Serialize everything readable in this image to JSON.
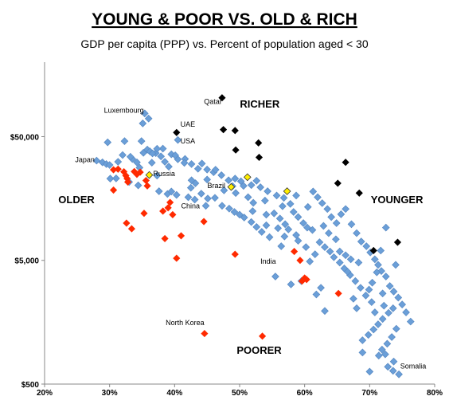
{
  "chart_data": {
    "type": "scatter",
    "title": "YOUNG & POOR VS. OLD & RICH",
    "subtitle": "GDP per capita (PPP) vs. Percent of population aged < 30",
    "xlabel": "",
    "ylabel": "",
    "x_scale": "linear",
    "y_scale": "log",
    "xlim": [
      20,
      80
    ],
    "ylim": [
      500,
      200000
    ],
    "x_ticks": [
      "20%",
      "30%",
      "40%",
      "50%",
      "60%",
      "70%",
      "80%"
    ],
    "x_tick_values": [
      20,
      30,
      40,
      50,
      60,
      70,
      80
    ],
    "y_ticks": [
      "$500",
      "$5,000",
      "$50,000"
    ],
    "y_tick_values": [
      500,
      5000,
      50000
    ],
    "grid": false,
    "legend": "none",
    "colors": {
      "other": "#6b9fd8",
      "other_stroke": "#5b8cc5",
      "richer": "#000000",
      "older_poorer": "#ff2a00",
      "highlight": "#ffee00",
      "highlight_stroke": "#333333"
    },
    "region_labels": [
      {
        "text": "RICHER",
        "x": 53.1,
        "y": 86000
      },
      {
        "text": "OLDER",
        "x": 24.9,
        "y": 14500
      },
      {
        "text": "YOUNGER",
        "x": 74.2,
        "y": 14500
      },
      {
        "text": "POORER",
        "x": 53.0,
        "y": 880
      }
    ],
    "country_labels": [
      {
        "text": "Luxembourg",
        "x": 32.2,
        "y": 78000,
        "anchor": "middle"
      },
      {
        "text": "Qatar",
        "x": 45.9,
        "y": 92000,
        "anchor": "middle"
      },
      {
        "text": "UAE",
        "x": 40.9,
        "y": 60000,
        "anchor": "start"
      },
      {
        "text": "USA",
        "x": 40.9,
        "y": 44000,
        "anchor": "start"
      },
      {
        "text": "Japan",
        "x": 27.7,
        "y": 31000,
        "anchor": "end"
      },
      {
        "text": "Russia",
        "x": 36.7,
        "y": 24000,
        "anchor": "start"
      },
      {
        "text": "Brazil",
        "x": 47.8,
        "y": 19200,
        "anchor": "end"
      },
      {
        "text": "China",
        "x": 41.0,
        "y": 13200,
        "anchor": "start"
      },
      {
        "text": "India",
        "x": 54.4,
        "y": 4700,
        "anchor": "middle"
      },
      {
        "text": "North Korea",
        "x": 41.6,
        "y": 1500,
        "anchor": "middle"
      },
      {
        "text": "Somalia",
        "x": 74.7,
        "y": 670,
        "anchor": "start"
      }
    ],
    "series": [
      {
        "group": "richer",
        "points": [
          [
            47.3,
            103000
          ],
          [
            47.5,
            57000
          ],
          [
            49.3,
            56000
          ],
          [
            40.3,
            54000
          ],
          [
            52.9,
            44500
          ],
          [
            49.4,
            39000
          ],
          [
            53.0,
            34000
          ],
          [
            66.3,
            31000
          ],
          [
            65.1,
            21000
          ],
          [
            68.4,
            17500
          ],
          [
            70.6,
            6000
          ],
          [
            74.3,
            7000
          ]
        ]
      },
      {
        "group": "highlight",
        "points": [
          [
            36.1,
            24500
          ],
          [
            51.2,
            23500
          ],
          [
            48.7,
            19600
          ],
          [
            57.3,
            18100
          ]
        ]
      },
      {
        "group": "older_poorer",
        "points": [
          [
            30.6,
            27000
          ],
          [
            31.3,
            27300
          ],
          [
            32.2,
            26000
          ],
          [
            32.5,
            24200
          ],
          [
            32.7,
            22900
          ],
          [
            32.8,
            21500
          ],
          [
            33.8,
            26100
          ],
          [
            34.2,
            24800
          ],
          [
            34.7,
            25800
          ],
          [
            35.6,
            22100
          ],
          [
            35.8,
            20000
          ],
          [
            30.6,
            18500
          ],
          [
            35.3,
            12000
          ],
          [
            38.2,
            12500
          ],
          [
            39.0,
            13300
          ],
          [
            39.3,
            14700
          ],
          [
            39.7,
            11700
          ],
          [
            32.6,
            10000
          ],
          [
            33.4,
            9000
          ],
          [
            38.5,
            7500
          ],
          [
            41.0,
            7900
          ],
          [
            40.3,
            5200
          ],
          [
            44.5,
            10300
          ],
          [
            49.3,
            5600
          ],
          [
            58.4,
            5900
          ],
          [
            59.3,
            5000
          ],
          [
            60.0,
            3600
          ],
          [
            59.6,
            3400
          ],
          [
            60.3,
            3500
          ],
          [
            65.2,
            2700
          ],
          [
            44.6,
            1280
          ],
          [
            53.5,
            1220
          ]
        ]
      },
      {
        "group": "other",
        "points": [
          [
            35.4,
            77000
          ],
          [
            36.0,
            70000
          ],
          [
            35.1,
            64000
          ],
          [
            29.7,
            45000
          ],
          [
            32.3,
            46000
          ],
          [
            34.9,
            46000
          ],
          [
            40.5,
            47000
          ],
          [
            28.0,
            32000
          ],
          [
            28.9,
            31000
          ],
          [
            29.5,
            30000
          ],
          [
            30.0,
            29500
          ],
          [
            31.3,
            31300
          ],
          [
            32.0,
            35500
          ],
          [
            33.5,
            33000
          ],
          [
            34.2,
            31000
          ],
          [
            35.2,
            37000
          ],
          [
            35.8,
            39300
          ],
          [
            36.2,
            38000
          ],
          [
            37.1,
            36800
          ],
          [
            37.9,
            34600
          ],
          [
            38.5,
            31300
          ],
          [
            39.5,
            36000
          ],
          [
            40.5,
            32800
          ],
          [
            41.6,
            33000
          ],
          [
            42.6,
            30000
          ],
          [
            43.6,
            27500
          ],
          [
            44.2,
            30300
          ],
          [
            45.0,
            27100
          ],
          [
            46.0,
            25800
          ],
          [
            47.2,
            24400
          ],
          [
            48.3,
            22200
          ],
          [
            49.3,
            22900
          ],
          [
            50.2,
            21800
          ],
          [
            50.6,
            20000
          ],
          [
            51.8,
            20300
          ],
          [
            52.6,
            22000
          ],
          [
            53.2,
            19500
          ],
          [
            54.3,
            18100
          ],
          [
            55.7,
            16700
          ],
          [
            56.8,
            16000
          ],
          [
            30.1,
            22900
          ],
          [
            31.0,
            23000
          ],
          [
            33.0,
            21500
          ],
          [
            34.4,
            20200
          ],
          [
            37.6,
            18100
          ],
          [
            38.9,
            17200
          ],
          [
            42.5,
            19300
          ],
          [
            43.2,
            21000
          ],
          [
            44.1,
            17300
          ],
          [
            45.1,
            15800
          ],
          [
            46.2,
            16000
          ],
          [
            47.3,
            13800
          ],
          [
            48.4,
            13100
          ],
          [
            49.2,
            12300
          ],
          [
            50.0,
            11700
          ],
          [
            50.7,
            11100
          ],
          [
            51.8,
            10200
          ],
          [
            52.6,
            9300
          ],
          [
            53.4,
            8500
          ],
          [
            54.6,
            7700
          ],
          [
            55.3,
            12000
          ],
          [
            56.2,
            10900
          ],
          [
            57.0,
            9800
          ],
          [
            57.5,
            8900
          ],
          [
            58.3,
            12300
          ],
          [
            59.0,
            11200
          ],
          [
            59.8,
            10000
          ],
          [
            60.4,
            9200
          ],
          [
            61.3,
            18000
          ],
          [
            62.0,
            16200
          ],
          [
            62.7,
            14500
          ],
          [
            63.5,
            13000
          ],
          [
            64.1,
            11200
          ],
          [
            64.9,
            10000
          ],
          [
            65.6,
            11800
          ],
          [
            66.3,
            13000
          ],
          [
            67.2,
            9800
          ],
          [
            68.0,
            8300
          ],
          [
            68.7,
            7100
          ],
          [
            69.5,
            6500
          ],
          [
            70.1,
            5800
          ],
          [
            70.8,
            5100
          ],
          [
            71.3,
            4600
          ],
          [
            71.8,
            4100
          ],
          [
            72.5,
            3700
          ],
          [
            73.1,
            3100
          ],
          [
            73.7,
            2800
          ],
          [
            74.4,
            2500
          ],
          [
            75.0,
            2200
          ],
          [
            75.6,
            1900
          ],
          [
            76.3,
            1600
          ],
          [
            74.1,
            1400
          ],
          [
            73.4,
            1200
          ],
          [
            72.7,
            1060
          ],
          [
            71.9,
            950
          ],
          [
            72.4,
            870
          ],
          [
            73.7,
            760
          ],
          [
            72.8,
            690
          ],
          [
            73.6,
            640
          ],
          [
            74.5,
            600
          ],
          [
            68.9,
            1130
          ],
          [
            69.8,
            1250
          ],
          [
            70.6,
            1380
          ],
          [
            71.3,
            1520
          ],
          [
            72.0,
            1680
          ],
          [
            72.9,
            1880
          ],
          [
            73.6,
            2050
          ],
          [
            70.3,
            2300
          ],
          [
            69.4,
            2600
          ],
          [
            68.6,
            3000
          ],
          [
            67.8,
            3400
          ],
          [
            67.0,
            3800
          ],
          [
            66.1,
            4300
          ],
          [
            65.4,
            4800
          ],
          [
            64.5,
            5300
          ],
          [
            63.9,
            5900
          ],
          [
            63.1,
            6400
          ],
          [
            62.3,
            7000
          ],
          [
            61.6,
            5600
          ],
          [
            60.8,
            4900
          ],
          [
            55.5,
            3700
          ],
          [
            57.9,
            3200
          ],
          [
            59.5,
            3400
          ],
          [
            62.5,
            3000
          ],
          [
            61.8,
            2650
          ],
          [
            63.1,
            1950
          ],
          [
            69.9,
            2900
          ],
          [
            70.4,
            3300
          ],
          [
            71.1,
            4000
          ],
          [
            71.7,
            6000
          ],
          [
            72.5,
            9200
          ],
          [
            68.0,
            2050
          ],
          [
            70.0,
            630
          ],
          [
            68.9,
            900
          ],
          [
            72.2,
            2150
          ],
          [
            74.0,
            4600
          ],
          [
            60.2,
            6400
          ],
          [
            58.7,
            8000
          ],
          [
            56.4,
            6500
          ],
          [
            54.1,
            9600
          ],
          [
            52.0,
            12500
          ],
          [
            57.8,
            14300
          ],
          [
            60.5,
            13500
          ],
          [
            62.9,
            9500
          ],
          [
            38.2,
            40000
          ],
          [
            39.1,
            28600
          ],
          [
            40.1,
            35300
          ],
          [
            41.5,
            30700
          ],
          [
            36.5,
            30800
          ],
          [
            46.3,
            27000
          ],
          [
            42.1,
            16200
          ],
          [
            45.0,
            22500
          ],
          [
            47.6,
            18400
          ],
          [
            51.3,
            16200
          ],
          [
            53.9,
            15200
          ],
          [
            56.6,
            13700
          ],
          [
            58.7,
            16700
          ],
          [
            49.4,
            17500
          ],
          [
            65.4,
            5900
          ],
          [
            67.1,
            5100
          ],
          [
            68.3,
            4800
          ],
          [
            66.3,
            5500
          ],
          [
            63.7,
            8300
          ],
          [
            61.2,
            8800
          ],
          [
            59.0,
            7200
          ],
          [
            56.9,
            7800
          ],
          [
            55.9,
            9100
          ],
          [
            54.1,
            11700
          ],
          [
            52.1,
            14600
          ],
          [
            44.8,
            13800
          ],
          [
            43.1,
            15500
          ],
          [
            40.3,
            16900
          ],
          [
            39.5,
            18000
          ],
          [
            37.3,
            24200
          ],
          [
            34.6,
            28100
          ],
          [
            33.2,
            34400
          ],
          [
            37.3,
            39900
          ],
          [
            36.6,
            36600
          ],
          [
            42.6,
            22200
          ],
          [
            48.9,
            19900
          ],
          [
            72.0,
            2700
          ],
          [
            70.8,
            1900
          ],
          [
            71.4,
            850
          ],
          [
            67.5,
            2450
          ],
          [
            66.6,
            4050
          ],
          [
            64.8,
            7400
          ]
        ]
      }
    ]
  }
}
